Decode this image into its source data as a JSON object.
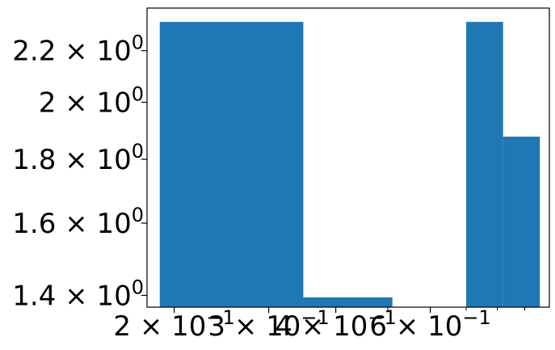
{
  "chart_data": {
    "type": "bar",
    "x_scale": "log",
    "y_scale": "log",
    "xlim": [
      0.178,
      1.0
    ],
    "ylim": [
      1.37,
      2.38
    ],
    "bars": [
      {
        "x0": 0.188,
        "x1": 0.348,
        "value": 2.32
      },
      {
        "x0": 0.348,
        "x1": 0.51,
        "value": 1.395
      },
      {
        "x0": 0.51,
        "x1": 0.7,
        "value": 1.37
      },
      {
        "x0": 0.7,
        "x1": 0.82,
        "value": 2.32
      },
      {
        "x0": 0.82,
        "x1": 0.96,
        "value": 1.877
      }
    ],
    "x_major_ticks": [
      0.2,
      0.3,
      0.4,
      0.6
    ],
    "x_tick_labels": [
      {
        "base": "2 × 10",
        "exp": "−1"
      },
      {
        "base": "3 × 10",
        "exp": "−1"
      },
      {
        "base": "4 × 10",
        "exp": "−1"
      },
      {
        "base": "6 × 10",
        "exp": "−1"
      }
    ],
    "x_minor_ticks": [
      0.5,
      0.7,
      0.8,
      0.9
    ],
    "y_major_ticks": [
      1.4,
      1.6,
      1.8,
      2.0,
      2.2
    ],
    "y_tick_labels": [
      {
        "base": "1.4 × 10",
        "exp": "0"
      },
      {
        "base": "1.6 × 10",
        "exp": "0"
      },
      {
        "base": "1.8 × 10",
        "exp": "0"
      },
      {
        "base": "2 × 10",
        "exp": "0"
      },
      {
        "base": "2.2 × 10",
        "exp": "0"
      }
    ],
    "title": "",
    "xlabel": "",
    "ylabel": "",
    "grid": false,
    "bar_color": "#1f77b4"
  }
}
